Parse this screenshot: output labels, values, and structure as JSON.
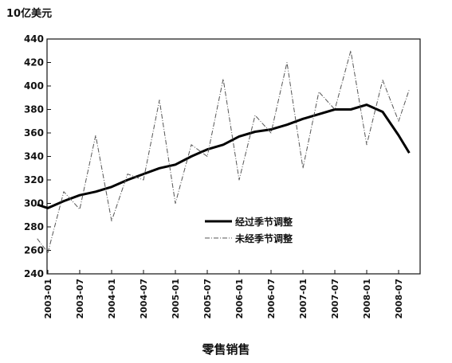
{
  "chart_data": {
    "type": "line",
    "title": "",
    "unit_label": "10亿美元",
    "xlabel": "零售销售",
    "ylabel": "",
    "ylim": [
      240,
      440
    ],
    "yticks": [
      "240",
      "260",
      "280",
      "300",
      "320",
      "340",
      "360",
      "380",
      "400",
      "420",
      "440"
    ],
    "xticks": [
      "2003-01",
      "2003-07",
      "2004-01",
      "2004-07",
      "2005-01",
      "2005-07",
      "2006-01",
      "2006-07",
      "2007-01",
      "2007-07",
      "2008-01",
      "2008-07"
    ],
    "x": [
      "2002-11",
      "2003-01",
      "2003-04",
      "2003-07",
      "2003-10",
      "2004-01",
      "2004-04",
      "2004-07",
      "2004-10",
      "2005-01",
      "2005-04",
      "2005-07",
      "2005-10",
      "2006-01",
      "2006-04",
      "2006-07",
      "2006-10",
      "2007-01",
      "2007-04",
      "2007-07",
      "2007-10",
      "2008-01",
      "2008-04",
      "2008-07",
      "2008-09"
    ],
    "series": [
      {
        "name": "经过季节调整",
        "style": "thick",
        "color": "#000000",
        "values": [
          299,
          296,
          302,
          307,
          310,
          314,
          320,
          325,
          330,
          333,
          340,
          346,
          350,
          357,
          361,
          363,
          367,
          372,
          376,
          380,
          380,
          384,
          378,
          358,
          343
        ]
      },
      {
        "name": "未经季节调整",
        "style": "thin",
        "color": "#555555",
        "values": [
          270,
          258,
          310,
          295,
          358,
          285,
          325,
          320,
          388,
          300,
          350,
          340,
          406,
          320,
          375,
          360,
          420,
          330,
          395,
          380,
          430,
          350,
          405,
          370,
          397
        ]
      }
    ],
    "legend_position": "lower-right",
    "grid": false
  }
}
